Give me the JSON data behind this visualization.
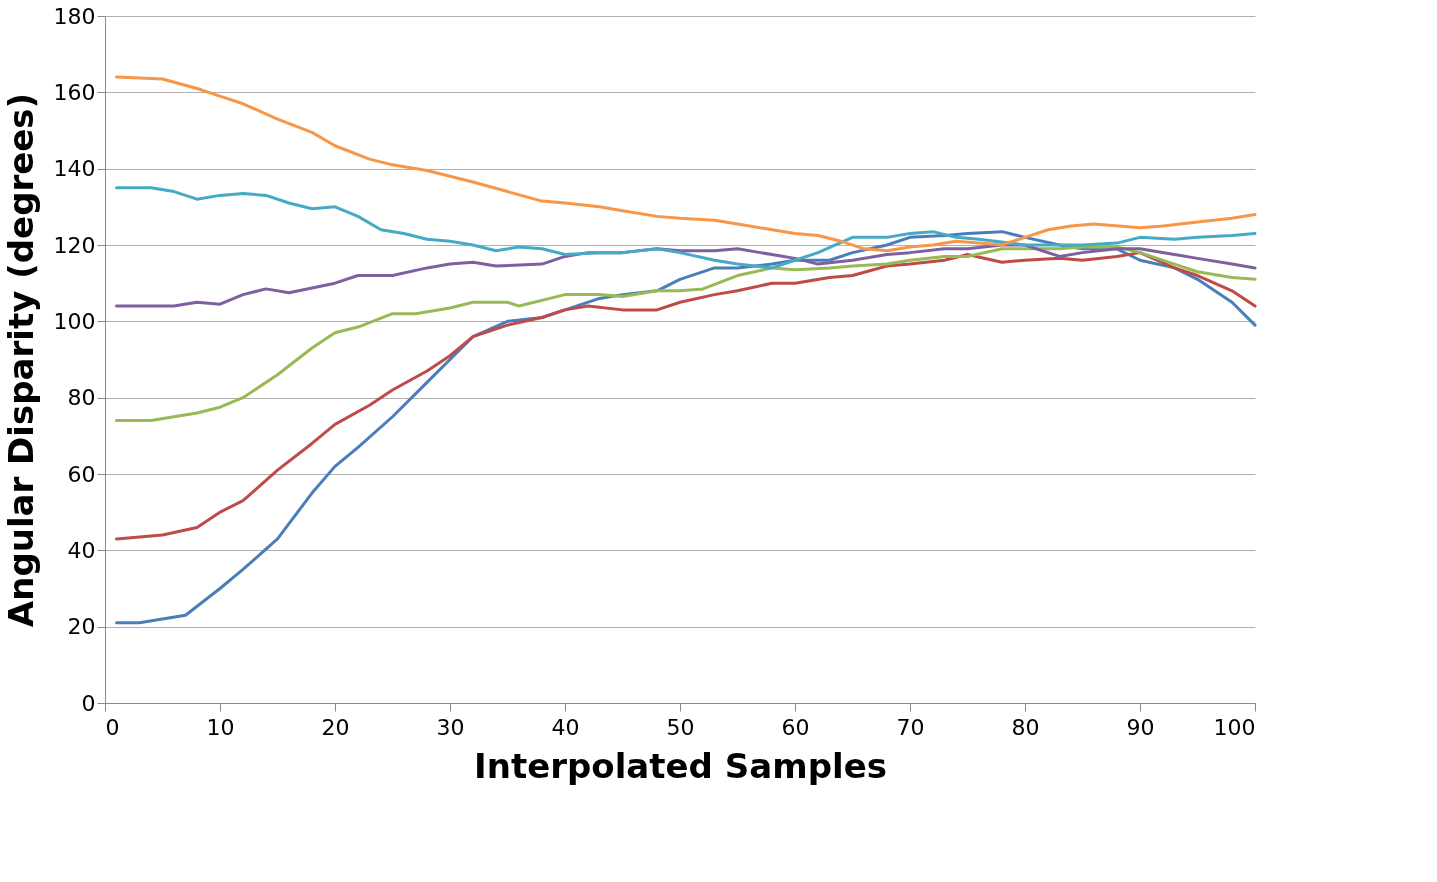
{
  "chart_data": {
    "type": "line",
    "xlabel": "Interpolated Samples",
    "ylabel": "Angular Disparity (degrees)",
    "xlim": [
      0,
      100
    ],
    "xticks": [
      0,
      10,
      20,
      30,
      40,
      50,
      60,
      70,
      80,
      90,
      100
    ],
    "ylim": [
      0,
      180
    ],
    "yticks": [
      0,
      20,
      40,
      60,
      80,
      100,
      120,
      140,
      160,
      180
    ],
    "grid": "y",
    "legend": false,
    "marker": "none",
    "line_style": "solid",
    "series": [
      {
        "color": "#4a7ebb",
        "x": [
          1,
          3,
          5,
          7,
          10,
          12,
          15,
          18,
          20,
          22,
          25,
          28,
          30,
          32,
          35,
          38,
          40,
          43,
          45,
          48,
          50,
          53,
          55,
          58,
          60,
          63,
          65,
          68,
          70,
          73,
          75,
          78,
          80,
          83,
          85,
          88,
          90,
          93,
          95,
          98,
          100
        ],
        "values": [
          21,
          21,
          22,
          23,
          30,
          35,
          43,
          55,
          62,
          67,
          75,
          84,
          90,
          96,
          100,
          101,
          103,
          106,
          107,
          108,
          111,
          114,
          114,
          115,
          116,
          116,
          118,
          120,
          122,
          122.5,
          123,
          123.5,
          122,
          120,
          119,
          119,
          116,
          114,
          111,
          105,
          99
        ]
      },
      {
        "color": "#be4b48",
        "x": [
          1,
          5,
          8,
          10,
          12,
          15,
          18,
          20,
          23,
          25,
          28,
          30,
          32,
          35,
          38,
          40,
          42,
          45,
          48,
          50,
          53,
          55,
          58,
          60,
          63,
          65,
          68,
          70,
          73,
          75,
          78,
          80,
          83,
          85,
          88,
          90,
          93,
          95,
          98,
          100
        ],
        "values": [
          43,
          44,
          46,
          50,
          53,
          61,
          68,
          73,
          78,
          82,
          87,
          91,
          96,
          99,
          101,
          103,
          104,
          103,
          103,
          105,
          107,
          108,
          110,
          110,
          111.5,
          112,
          114.5,
          115,
          116,
          117.5,
          115.5,
          116,
          116.5,
          116,
          117,
          118,
          114,
          112,
          108,
          104
        ]
      },
      {
        "color": "#98b954",
        "x": [
          1,
          4,
          6,
          8,
          10,
          12,
          15,
          18,
          20,
          22,
          25,
          27,
          30,
          32,
          35,
          36,
          40,
          43,
          45,
          48,
          50,
          52,
          55,
          58,
          60,
          63,
          65,
          68,
          70,
          73,
          75,
          78,
          80,
          83,
          85,
          88,
          90,
          93,
          95,
          98,
          100
        ],
        "values": [
          74,
          74,
          75,
          76,
          77.5,
          80,
          86,
          93,
          97,
          98.5,
          102,
          102,
          103.5,
          105,
          105,
          104,
          107,
          107,
          106.5,
          108,
          108,
          108.5,
          112,
          114,
          113.5,
          114,
          114.5,
          115,
          116,
          117,
          117,
          119,
          119,
          119,
          119.5,
          119.5,
          118,
          115,
          113,
          111.5,
          111
        ]
      },
      {
        "color": "#7d60a0",
        "x": [
          1,
          6,
          8,
          10,
          12,
          14,
          16,
          20,
          22,
          25,
          28,
          30,
          32,
          34,
          38,
          40,
          42,
          45,
          48,
          50,
          53,
          55,
          57,
          60,
          62,
          65,
          68,
          70,
          73,
          75,
          78,
          80,
          83,
          85,
          88,
          90,
          93,
          95,
          98,
          100
        ],
        "values": [
          104,
          104,
          105,
          104.5,
          107,
          108.5,
          107.5,
          110,
          112,
          112,
          114,
          115,
          115.5,
          114.5,
          115,
          117,
          118,
          118,
          119,
          118.5,
          118.5,
          119,
          118,
          116.5,
          115,
          116,
          117.5,
          118,
          119,
          119,
          120,
          120,
          117,
          118,
          119,
          119,
          117.5,
          116.5,
          115,
          114
        ]
      },
      {
        "color": "#46aac5",
        "x": [
          1,
          4,
          6,
          8,
          10,
          12,
          14,
          16,
          18,
          20,
          22,
          24,
          26,
          28,
          30,
          32,
          34,
          36,
          38,
          40,
          43,
          45,
          48,
          50,
          53,
          55,
          58,
          60,
          62,
          65,
          68,
          70,
          72,
          74,
          76,
          80,
          85,
          88,
          90,
          93,
          95,
          98,
          100
        ],
        "values": [
          135,
          135,
          134,
          132,
          133,
          133.5,
          133,
          131,
          129.5,
          130,
          127.5,
          124,
          123,
          121.5,
          121,
          120,
          118.5,
          119.5,
          119,
          117.5,
          118,
          118,
          119,
          118,
          116,
          115,
          114,
          116,
          118,
          122,
          122,
          123,
          123.5,
          122,
          121.5,
          120,
          120,
          120.5,
          122,
          121.5,
          122,
          122.5,
          123
        ]
      },
      {
        "color": "#f79646",
        "x": [
          1,
          5,
          8,
          10,
          12,
          15,
          18,
          20,
          23,
          25,
          28,
          30,
          32,
          35,
          38,
          40,
          43,
          45,
          48,
          50,
          53,
          55,
          58,
          60,
          62,
          64,
          66,
          68,
          70,
          72,
          74,
          76,
          78,
          80,
          82,
          84,
          86,
          90,
          92,
          95,
          98,
          100
        ],
        "values": [
          164,
          163.5,
          161,
          159,
          157,
          153,
          149.5,
          146,
          142.5,
          141,
          139.5,
          138,
          136.5,
          134,
          131.5,
          131,
          130,
          129,
          127.5,
          127,
          126.5,
          125.5,
          124,
          123,
          122.5,
          121,
          119,
          118.5,
          119.5,
          120,
          121,
          120.5,
          120,
          122,
          124,
          125,
          125.5,
          124.5,
          125,
          126,
          127,
          128
        ]
      }
    ]
  }
}
